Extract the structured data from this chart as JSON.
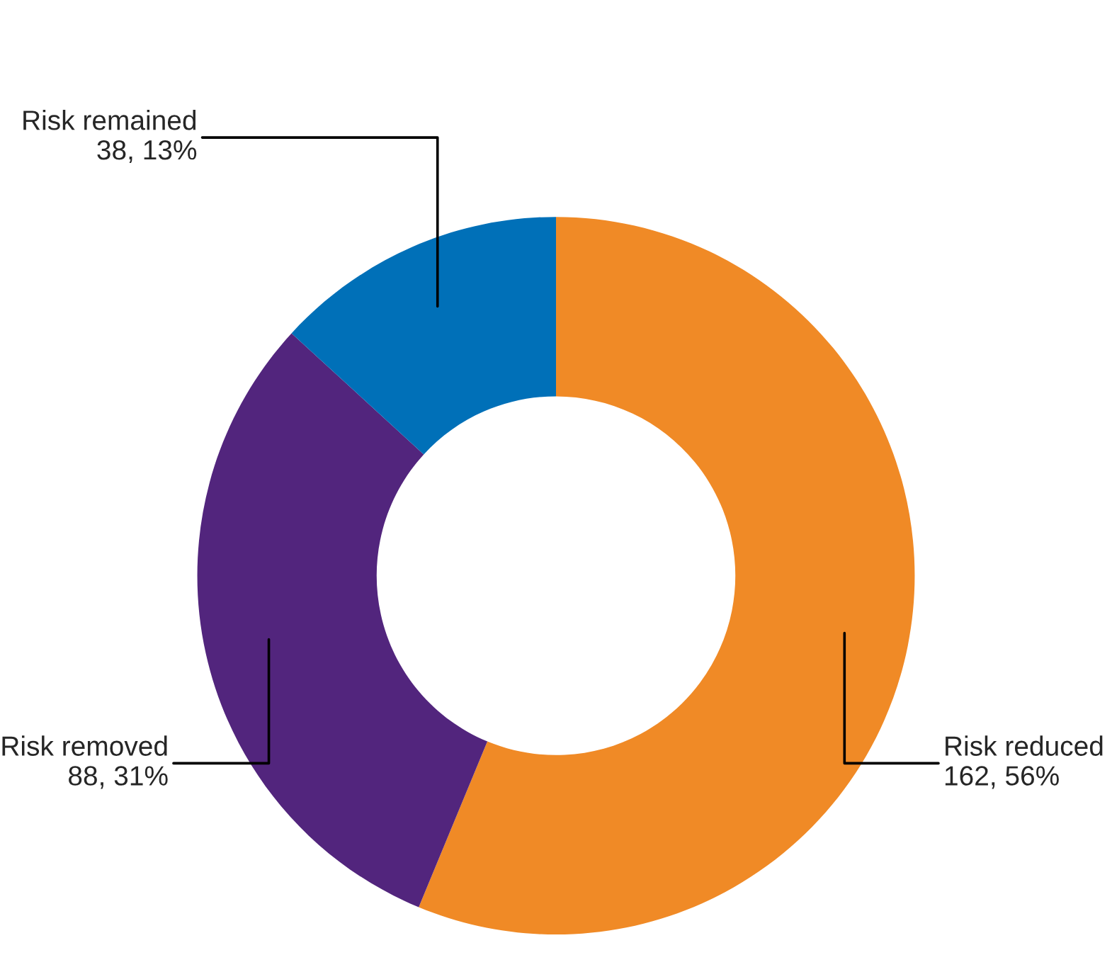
{
  "chart_data": {
    "type": "donut",
    "categories": [
      "Risk reduced",
      "Risk removed",
      "Risk remained"
    ],
    "values": [
      162,
      88,
      38
    ],
    "colors": [
      "#f08a26",
      "#52257d",
      "#0070b8"
    ],
    "value_labels": [
      "162, 56%",
      "88, 31%",
      "38, 13%"
    ]
  }
}
